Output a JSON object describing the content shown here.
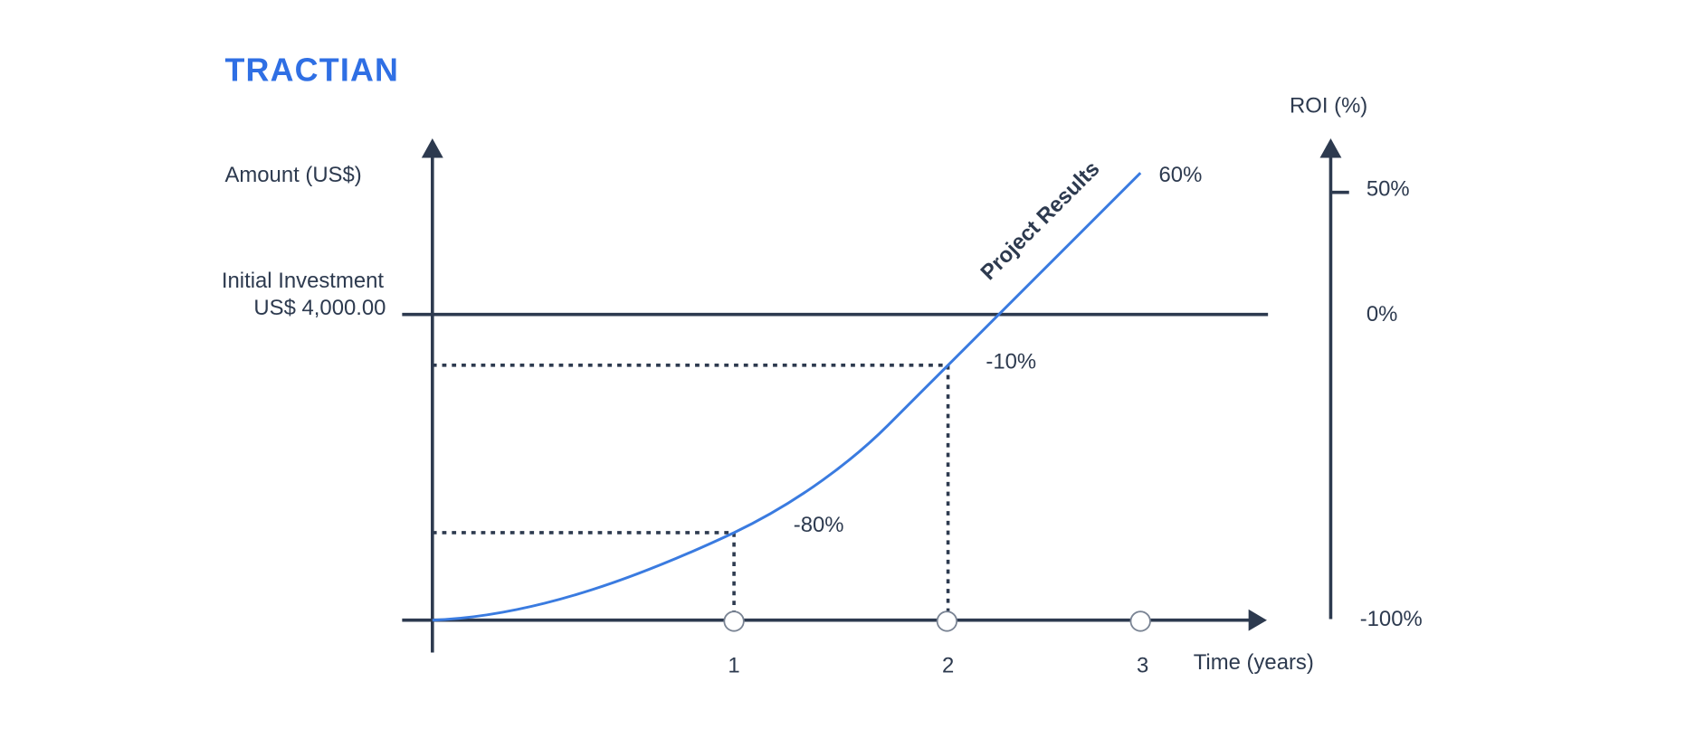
{
  "logo": "TRACTIAN",
  "left_axis": {
    "label": "Amount (US$)",
    "reference_line_label": [
      "Initial Investment",
      "US$ 4,000.00"
    ]
  },
  "right_axis": {
    "label": "ROI (%)",
    "ticks": [
      "50%",
      "0%",
      "-100%"
    ]
  },
  "x_axis": {
    "label": "Time (years)",
    "ticks": [
      "1",
      "2",
      "3"
    ]
  },
  "curve": {
    "label": "Project Results",
    "point_labels": [
      "-80%",
      "-10%",
      "60%"
    ]
  }
}
